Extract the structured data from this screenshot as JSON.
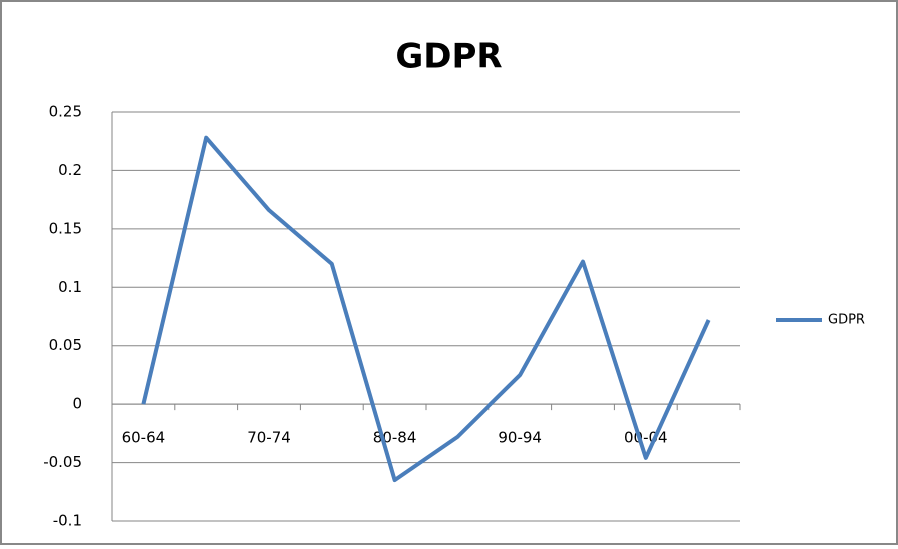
{
  "chart_data": {
    "type": "line",
    "title": "GDPR",
    "categories": [
      "60-64",
      null,
      "70-74",
      null,
      "80-84",
      null,
      "90-94",
      null,
      "00-04",
      null
    ],
    "series": [
      {
        "name": "GDPR",
        "color": "#4a7ebb",
        "values": [
          0,
          0.228,
          0.166,
          0.12,
          -0.065,
          -0.028,
          0.025,
          0.122,
          -0.046,
          0.072
        ]
      }
    ],
    "ylim": [
      -0.1,
      0.25
    ],
    "yticks": [
      -0.1,
      -0.05,
      0,
      0.05,
      0.1,
      0.15,
      0.2,
      0.25
    ],
    "grid": true,
    "legend": "right"
  }
}
